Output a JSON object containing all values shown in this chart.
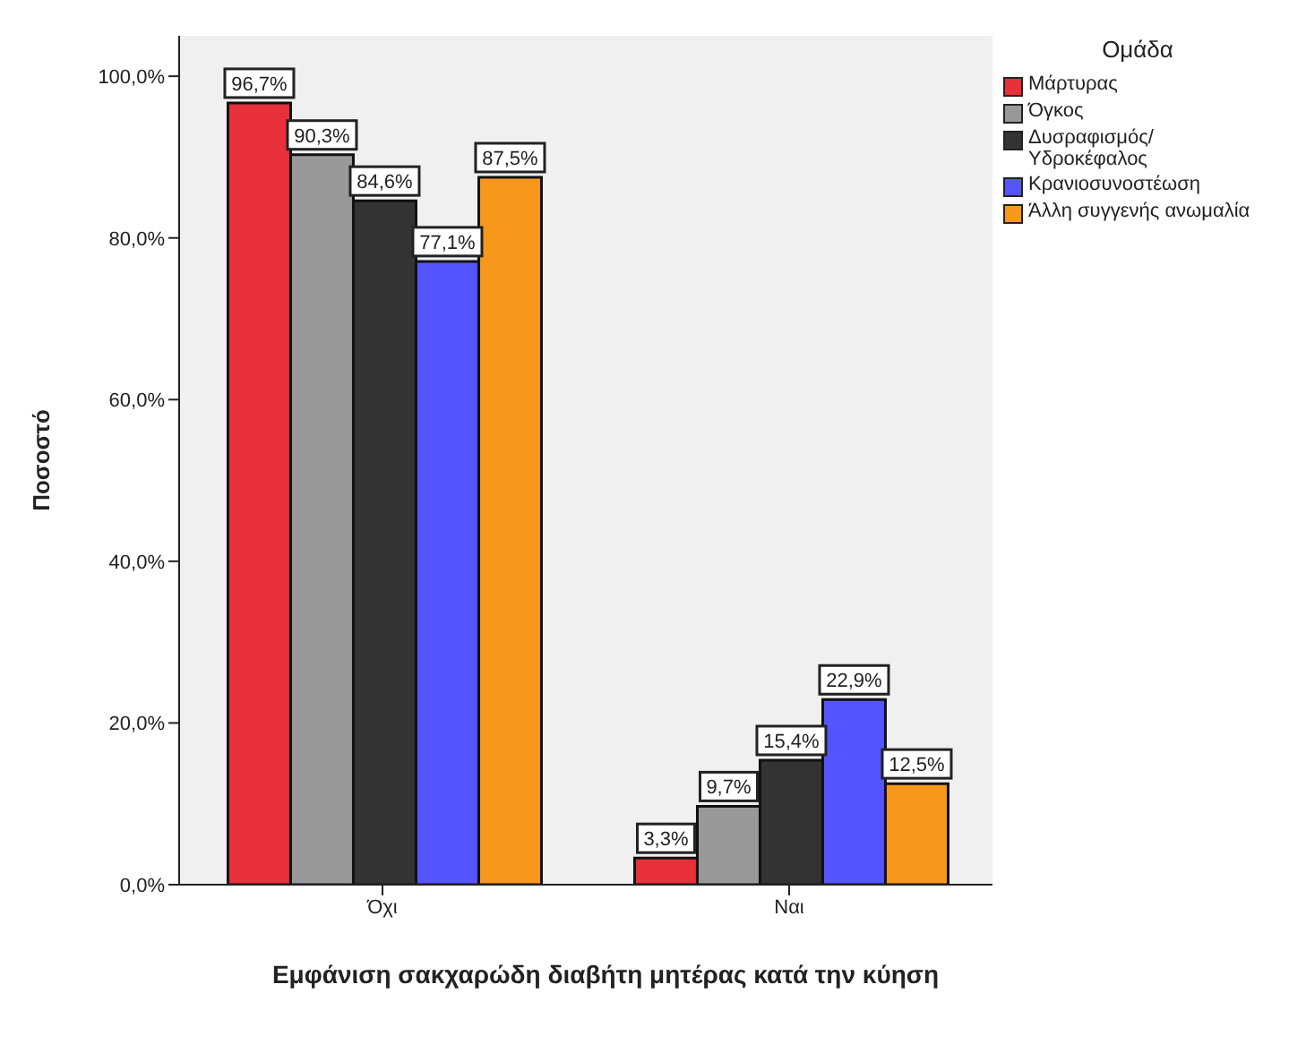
{
  "chart_data": {
    "type": "bar",
    "xlabel": "Εμφάνιση σακχαρώδη διαβήτη μητέρας κατά την κύηση",
    "ylabel": "Ποσοστό",
    "legend_title": "Ομάδα",
    "categories": [
      "Όχι",
      "Ναι"
    ],
    "series": [
      {
        "name": "Μάρτυρας",
        "color": "#e8303a",
        "values": [
          96.7,
          3.3
        ],
        "value_labels": [
          "96,7%",
          "3,3%"
        ]
      },
      {
        "name": "Όγκος",
        "color": "#999999",
        "values": [
          90.3,
          9.7
        ],
        "value_labels": [
          "90,3%",
          "9,7%"
        ]
      },
      {
        "name": "Δυσραφισμός/ Υδροκέφαλος",
        "color": "#333333",
        "values": [
          84.6,
          15.4
        ],
        "value_labels": [
          "84,6%",
          "15,4%"
        ]
      },
      {
        "name": "Κρανιοσυνοστέωση",
        "color": "#5555ff",
        "values": [
          77.1,
          22.9
        ],
        "value_labels": [
          "77,1%",
          "22,9%"
        ]
      },
      {
        "name": "Άλλη συγγενής ανωμαλία",
        "color": "#f7981d",
        "values": [
          87.5,
          12.5
        ],
        "value_labels": [
          "87,5%",
          "12,5%"
        ]
      }
    ],
    "ylim": [
      0,
      105
    ],
    "yticks": [
      {
        "value": 0,
        "label": "0,0%"
      },
      {
        "value": 20,
        "label": "20,0%"
      },
      {
        "value": 40,
        "label": "40,0%"
      },
      {
        "value": 60,
        "label": "60,0%"
      },
      {
        "value": 80,
        "label": "80,0%"
      },
      {
        "value": 100,
        "label": "100,0%"
      }
    ],
    "grid": false,
    "legend": "top right"
  }
}
